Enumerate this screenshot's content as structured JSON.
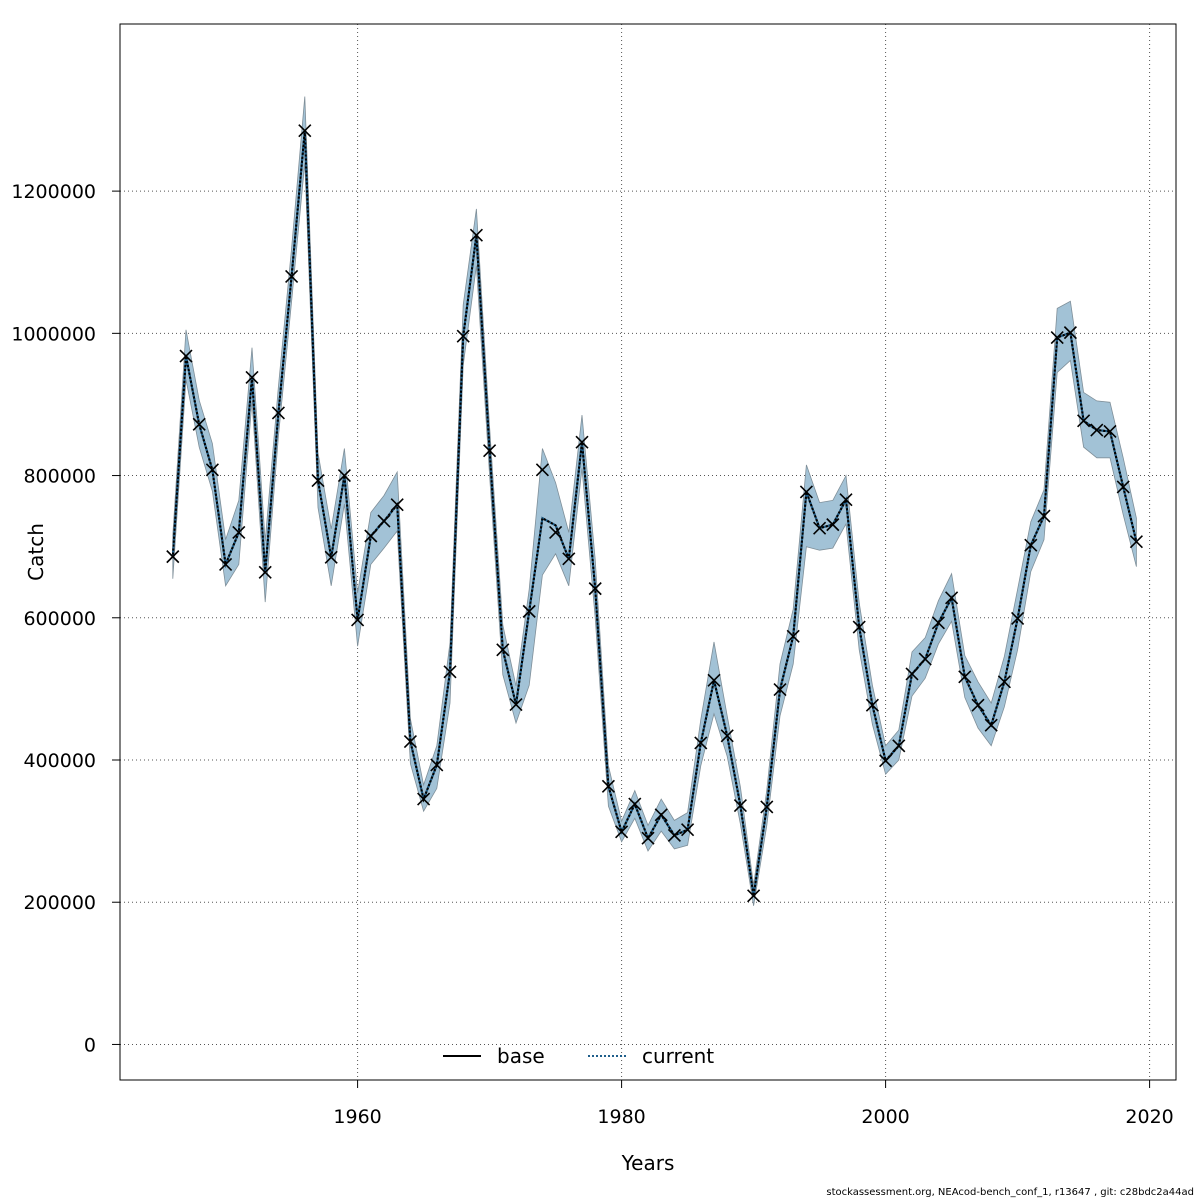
{
  "chart_data": {
    "type": "line",
    "xlabel": "Years",
    "ylabel": "Catch",
    "xlim": [
      1942,
      2022
    ],
    "ylim": [
      -50000,
      1435000
    ],
    "x_ticks": [
      1960,
      1980,
      2000,
      2020
    ],
    "y_ticks": [
      0,
      200000,
      400000,
      600000,
      800000,
      1000000,
      1200000
    ],
    "grid": true,
    "legend_position": "bottom-center",
    "colors": {
      "band": "#a2c2d6",
      "band_edge": "#7f8f99",
      "current_line": "#1f5f8b",
      "base_line": "#000000",
      "marker": "#000000"
    },
    "years": [
      1946,
      1947,
      1948,
      1949,
      1950,
      1951,
      1952,
      1953,
      1954,
      1955,
      1956,
      1957,
      1958,
      1959,
      1960,
      1961,
      1962,
      1963,
      1964,
      1965,
      1966,
      1967,
      1968,
      1969,
      1970,
      1971,
      1972,
      1973,
      1974,
      1975,
      1976,
      1977,
      1978,
      1979,
      1980,
      1981,
      1982,
      1983,
      1984,
      1985,
      1986,
      1987,
      1988,
      1989,
      1990,
      1991,
      1992,
      1993,
      1994,
      1995,
      1996,
      1997,
      1998,
      1999,
      2000,
      2001,
      2002,
      2003,
      2004,
      2005,
      2006,
      2007,
      2008,
      2009,
      2010,
      2011,
      2012,
      2013,
      2014,
      2015,
      2016,
      2017,
      2018,
      2019
    ],
    "observed": [
      686000,
      968000,
      872000,
      808000,
      675000,
      720000,
      938000,
      664000,
      888000,
      1080000,
      1285000,
      793000,
      685000,
      800000,
      597000,
      715000,
      736000,
      759000,
      426000,
      345000,
      393000,
      524000,
      996000,
      1138000,
      835000,
      555000,
      478000,
      609000,
      808000,
      720000,
      683000,
      847000,
      641000,
      363000,
      299000,
      338000,
      290000,
      323000,
      294000,
      302000,
      424000,
      512000,
      434000,
      336000,
      209000,
      334000,
      499000,
      574000,
      777000,
      726000,
      731000,
      766000,
      587000,
      477000,
      399000,
      420000,
      521000,
      542000,
      593000,
      628000,
      517000,
      477000,
      449000,
      510000,
      599000,
      702000,
      743000,
      994000,
      1001000,
      877000,
      864000,
      862000,
      784000,
      707000
    ],
    "series": [
      {
        "name": "base",
        "values": [
          686000,
          968000,
          872000,
          808000,
          675000,
          720000,
          938000,
          664000,
          888000,
          1080000,
          1285000,
          793000,
          685000,
          800000,
          597000,
          715000,
          736000,
          759000,
          426000,
          345000,
          393000,
          524000,
          996000,
          1138000,
          835000,
          555000,
          478000,
          609000,
          740000,
          730000,
          683000,
          847000,
          641000,
          363000,
          299000,
          338000,
          290000,
          323000,
          294000,
          302000,
          424000,
          512000,
          434000,
          336000,
          209000,
          334000,
          499000,
          574000,
          777000,
          726000,
          731000,
          766000,
          587000,
          477000,
          399000,
          420000,
          521000,
          542000,
          593000,
          628000,
          517000,
          477000,
          449000,
          510000,
          599000,
          702000,
          743000,
          994000,
          1001000,
          877000,
          864000,
          862000,
          784000,
          707000
        ]
      },
      {
        "name": "current",
        "values": [
          686000,
          968000,
          872000,
          808000,
          675000,
          720000,
          938000,
          664000,
          888000,
          1080000,
          1285000,
          793000,
          685000,
          800000,
          597000,
          715000,
          736000,
          759000,
          426000,
          345000,
          393000,
          524000,
          996000,
          1138000,
          835000,
          555000,
          478000,
          609000,
          740000,
          730000,
          683000,
          847000,
          641000,
          363000,
          299000,
          338000,
          290000,
          323000,
          294000,
          302000,
          424000,
          512000,
          434000,
          336000,
          209000,
          334000,
          499000,
          574000,
          777000,
          726000,
          731000,
          766000,
          587000,
          477000,
          399000,
          420000,
          521000,
          542000,
          593000,
          628000,
          517000,
          477000,
          449000,
          510000,
          599000,
          702000,
          743000,
          994000,
          1001000,
          877000,
          864000,
          862000,
          784000,
          707000
        ]
      }
    ],
    "ci_lower": [
      655000,
      935000,
      840000,
      778000,
      645000,
      675000,
      905000,
      622000,
      855000,
      1045000,
      1240000,
      755000,
      645000,
      760000,
      560000,
      675000,
      698000,
      722000,
      395000,
      328000,
      360000,
      480000,
      955000,
      1095000,
      800000,
      520000,
      452000,
      505000,
      660000,
      690000,
      645000,
      810000,
      600000,
      335000,
      285000,
      318000,
      272000,
      300000,
      275000,
      280000,
      392000,
      465000,
      405000,
      310000,
      195000,
      308000,
      462000,
      535000,
      700000,
      695000,
      698000,
      732000,
      555000,
      450000,
      380000,
      400000,
      490000,
      515000,
      563000,
      595000,
      488000,
      445000,
      420000,
      475000,
      555000,
      665000,
      710000,
      945000,
      962000,
      840000,
      825000,
      825000,
      745000,
      672000
    ],
    "ci_upper": [
      716000,
      1005000,
      906000,
      845000,
      710000,
      765000,
      980000,
      708000,
      925000,
      1120000,
      1333000,
      832000,
      725000,
      838000,
      635000,
      748000,
      772000,
      805000,
      458000,
      365000,
      420000,
      565000,
      1040000,
      1175000,
      868000,
      590000,
      504000,
      640000,
      838000,
      790000,
      720000,
      885000,
      682000,
      392000,
      314000,
      357000,
      308000,
      345000,
      315000,
      326000,
      457000,
      566000,
      462000,
      362000,
      224000,
      358000,
      535000,
      612000,
      815000,
      762000,
      765000,
      800000,
      621000,
      505000,
      420000,
      442000,
      552000,
      572000,
      624000,
      662000,
      547000,
      510000,
      480000,
      546000,
      640000,
      735000,
      780000,
      1035000,
      1045000,
      917000,
      905000,
      903000,
      825000,
      740000
    ],
    "legend": [
      {
        "label": "base",
        "style": "solid"
      },
      {
        "label": "current",
        "style": "dotted"
      }
    ]
  },
  "footer": "stockassessment.org, NEAcod-bench_conf_1, r13647 , git: c28bdc2a44ad"
}
